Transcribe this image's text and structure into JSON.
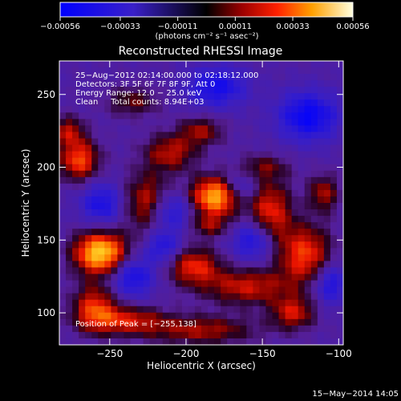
{
  "chart_data": {
    "type": "heatmap",
    "title": "Reconstructed RHESSI Image",
    "xlabel": "Heliocentric X (arcsec)",
    "ylabel": "Heliocentric Y (arcsec)",
    "xlim": [
      -283,
      -97
    ],
    "ylim": [
      78,
      273
    ],
    "x_ticks": [
      -250,
      -200,
      -150,
      -100
    ],
    "x_tick_labels": [
      "−250",
      "−200",
      "−150",
      "−100"
    ],
    "y_ticks": [
      100,
      150,
      200,
      250
    ],
    "y_tick_labels": [
      "100",
      "150",
      "200",
      "250"
    ],
    "colorbar": {
      "range": [
        -0.00056,
        0.00056
      ],
      "ticks": [
        -0.00056,
        -0.00033,
        -0.00011,
        0.00011,
        0.00033,
        0.00056
      ],
      "tick_labels": [
        "−0.00056",
        "−0.00033",
        "−0.00011",
        "0.00011",
        "0.00033",
        "0.00056"
      ],
      "units": "(photons cm⁻² s⁻¹ asec⁻²)"
    },
    "annotations": [
      "25−Aug−2012 02:14:00.000 to 02:18:12.000",
      "Detectors: 3F 5F 6F 7F 8F 9F, Att 0",
      "Energy Range: 12.0 − 25.0 keV",
      "Clean     Total counts: 8.94E+03"
    ],
    "peak_label": "Position of Peak = [−255,138]",
    "peak_position": [
      -255,
      138
    ],
    "blobs": [
      {
        "x": -256,
        "y": 141,
        "amp": 0.00062,
        "sx": 12,
        "sy": 10
      },
      {
        "x": -180,
        "y": 180,
        "amp": 0.00058,
        "sx": 12,
        "sy": 9
      },
      {
        "x": -145,
        "y": 168,
        "amp": 0.00036,
        "sx": 10,
        "sy": 16
      },
      {
        "x": -122,
        "y": 140,
        "amp": 0.00038,
        "sx": 12,
        "sy": 14
      },
      {
        "x": -160,
        "y": 118,
        "amp": 0.0003,
        "sx": 20,
        "sy": 9
      },
      {
        "x": -195,
        "y": 132,
        "amp": 0.00034,
        "sx": 12,
        "sy": 9
      },
      {
        "x": -225,
        "y": 176,
        "amp": 0.00032,
        "sx": 11,
        "sy": 14
      },
      {
        "x": -260,
        "y": 104,
        "amp": 0.00034,
        "sx": 10,
        "sy": 11
      },
      {
        "x": -240,
        "y": 95,
        "amp": 0.0003,
        "sx": 18,
        "sy": 7
      },
      {
        "x": -190,
        "y": 88,
        "amp": 0.00026,
        "sx": 25,
        "sy": 7
      },
      {
        "x": -270,
        "y": 205,
        "amp": 0.0004,
        "sx": 9,
        "sy": 10
      },
      {
        "x": -277,
        "y": 225,
        "amp": 0.00026,
        "sx": 7,
        "sy": 7
      },
      {
        "x": -210,
        "y": 210,
        "amp": 0.00028,
        "sx": 12,
        "sy": 9
      },
      {
        "x": -190,
        "y": 225,
        "amp": 0.00024,
        "sx": 10,
        "sy": 7
      },
      {
        "x": -110,
        "y": 182,
        "amp": 0.00026,
        "sx": 7,
        "sy": 9
      },
      {
        "x": -185,
        "y": 160,
        "amp": 0.00022,
        "sx": 10,
        "sy": 6
      },
      {
        "x": -150,
        "y": 200,
        "amp": 0.00018,
        "sx": 12,
        "sy": 6
      },
      {
        "x": -235,
        "y": 245,
        "amp": 0.0002,
        "sx": 12,
        "sy": 7
      },
      {
        "x": -130,
        "y": 100,
        "amp": 0.0003,
        "sx": 10,
        "sy": 8
      },
      {
        "x": -210,
        "y": 170,
        "amp": -0.0003,
        "sx": 10,
        "sy": 10
      },
      {
        "x": -155,
        "y": 150,
        "amp": -0.00032,
        "sx": 10,
        "sy": 10
      },
      {
        "x": -235,
        "y": 125,
        "amp": -0.0003,
        "sx": 10,
        "sy": 10
      },
      {
        "x": -120,
        "y": 235,
        "amp": -0.00036,
        "sx": 14,
        "sy": 12
      },
      {
        "x": -180,
        "y": 255,
        "amp": -0.0003,
        "sx": 14,
        "sy": 10
      },
      {
        "x": -165,
        "y": 185,
        "amp": -0.00026,
        "sx": 8,
        "sy": 8
      },
      {
        "x": -255,
        "y": 175,
        "amp": -0.00028,
        "sx": 10,
        "sy": 10
      },
      {
        "x": -215,
        "y": 145,
        "amp": -0.00026,
        "sx": 8,
        "sy": 8
      },
      {
        "x": -105,
        "y": 120,
        "amp": -0.00028,
        "sx": 8,
        "sy": 10
      }
    ]
  },
  "footer": {
    "timestamp": "15−May−2014 14:05"
  }
}
